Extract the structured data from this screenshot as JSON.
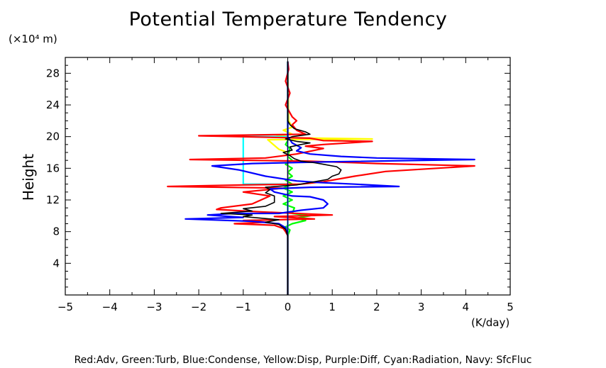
{
  "chart_data": {
    "type": "line",
    "title": "Potential Temperature Tendency",
    "xlabel": "(K/day)",
    "ylabel": "Height",
    "y_unit": "(×10⁴ m)",
    "xlim": [
      -5,
      5
    ],
    "ylim": [
      0,
      30
    ],
    "x_ticks": [
      -5,
      -4,
      -3,
      -2,
      -1,
      0,
      1,
      2,
      3,
      4,
      5
    ],
    "y_ticks": [
      4,
      8,
      12,
      16,
      20,
      24,
      28
    ],
    "grid": false,
    "caption": "Red:Adv, Green:Turb, Blue:Condense, Yellow:Disp, Purple:Diff, Cyan:Radiation, Navy: SfcFluc",
    "colors": {
      "Adv": "#ff0000",
      "Turb": "#00ff00",
      "Condense": "#0000ff",
      "Disp": "#ffff00",
      "Diff": "#b000b0",
      "Radiation": "#00ffff",
      "Navy": "#000080",
      "total": "#000000"
    },
    "series": [
      {
        "name": "Turb",
        "color_key": "Turb",
        "points": [
          [
            0,
            0
          ],
          [
            0,
            7.5
          ],
          [
            0.05,
            8.2
          ],
          [
            -0.05,
            8.6
          ],
          [
            0.1,
            9.0
          ],
          [
            0.4,
            9.4
          ],
          [
            0.2,
            9.7
          ],
          [
            0.5,
            10.0
          ],
          [
            0.1,
            10.3
          ],
          [
            0.15,
            11.0
          ],
          [
            -0.1,
            11.5
          ],
          [
            0.1,
            12.0
          ],
          [
            -0.1,
            12.5
          ],
          [
            0.1,
            13.0
          ],
          [
            -0.1,
            13.5
          ],
          [
            0.1,
            14.0
          ],
          [
            -0.05,
            14.5
          ],
          [
            0.1,
            15.0
          ],
          [
            0,
            15.5
          ],
          [
            0.1,
            16.0
          ],
          [
            -0.05,
            16.5
          ],
          [
            0.1,
            17.0
          ],
          [
            0,
            17.5
          ],
          [
            0.05,
            18.5
          ],
          [
            -0.05,
            19.0
          ],
          [
            0,
            19.5
          ],
          [
            0,
            29.5
          ]
        ]
      },
      {
        "name": "Disp",
        "color_key": "Disp",
        "points": [
          [
            0,
            0
          ],
          [
            0,
            18.0
          ],
          [
            -0.2,
            18.4
          ],
          [
            -0.45,
            19.6
          ],
          [
            1.9,
            19.7
          ],
          [
            0.1,
            19.85
          ],
          [
            -0.3,
            20.0
          ],
          [
            0.1,
            20.3
          ],
          [
            -0.1,
            20.8
          ],
          [
            0.1,
            21.2
          ],
          [
            0.02,
            22.0
          ],
          [
            0,
            29.5
          ]
        ]
      },
      {
        "name": "Radiation",
        "color_key": "Radiation",
        "points": [
          [
            0,
            0
          ],
          [
            0,
            14.0
          ],
          [
            -1.0,
            14.0
          ],
          [
            -1.0,
            20.0
          ],
          [
            0,
            20.0
          ],
          [
            0,
            29.5
          ]
        ]
      },
      {
        "name": "Adv",
        "color_key": "Adv",
        "points": [
          [
            0,
            0
          ],
          [
            0,
            7.5
          ],
          [
            -0.05,
            8.0
          ],
          [
            -0.1,
            8.4
          ],
          [
            -0.3,
            8.8
          ],
          [
            -1.2,
            9.0
          ],
          [
            -0.5,
            9.2
          ],
          [
            -1.0,
            9.4
          ],
          [
            0.6,
            9.6
          ],
          [
            -0.3,
            9.9
          ],
          [
            1.0,
            10.1
          ],
          [
            -0.6,
            10.5
          ],
          [
            -1.6,
            10.8
          ],
          [
            -1.5,
            11.0
          ],
          [
            -0.8,
            11.5
          ],
          [
            -0.4,
            12.5
          ],
          [
            -1.0,
            13.0
          ],
          [
            -0.1,
            13.5
          ],
          [
            -2.7,
            13.7
          ],
          [
            -1.0,
            13.9
          ],
          [
            0.3,
            14.0
          ],
          [
            0.8,
            14.3
          ],
          [
            1.5,
            15.0
          ],
          [
            2.2,
            15.6
          ],
          [
            4.2,
            16.3
          ],
          [
            2.0,
            16.6
          ],
          [
            0.5,
            16.9
          ],
          [
            -2.2,
            17.1
          ],
          [
            -0.5,
            17.3
          ],
          [
            0.2,
            17.8
          ],
          [
            0.8,
            18.5
          ],
          [
            0.4,
            18.8
          ],
          [
            0.8,
            19.0
          ],
          [
            1.9,
            19.4
          ],
          [
            0.8,
            19.5
          ],
          [
            0.5,
            19.8
          ],
          [
            -2.0,
            20.1
          ],
          [
            0.4,
            20.3
          ],
          [
            0.2,
            20.8
          ],
          [
            0.1,
            21.5
          ],
          [
            0.2,
            22.0
          ],
          [
            0.1,
            22.5
          ],
          [
            0,
            23.5
          ],
          [
            -0.05,
            24.0
          ],
          [
            0.05,
            25.5
          ],
          [
            -0.05,
            27.0
          ],
          [
            0.02,
            28.5
          ],
          [
            0,
            29.5
          ]
        ]
      },
      {
        "name": "Condense",
        "color_key": "Condense",
        "points": [
          [
            0,
            0
          ],
          [
            0,
            7.5
          ],
          [
            -0.05,
            8.5
          ],
          [
            -0.2,
            9.0
          ],
          [
            -0.8,
            9.3
          ],
          [
            -2.3,
            9.6
          ],
          [
            -1.0,
            9.8
          ],
          [
            -1.8,
            10.1
          ],
          [
            -1.2,
            10.3
          ],
          [
            -0.2,
            10.3
          ],
          [
            0.3,
            10.7
          ],
          [
            0.8,
            11.0
          ],
          [
            0.9,
            11.5
          ],
          [
            0.8,
            12.0
          ],
          [
            0.5,
            12.4
          ],
          [
            0.1,
            12.5
          ],
          [
            -0.3,
            13.0
          ],
          [
            -0.4,
            13.4
          ],
          [
            0.5,
            13.6
          ],
          [
            2.5,
            13.7
          ],
          [
            1.5,
            14.0
          ],
          [
            0.7,
            14.2
          ],
          [
            0.2,
            14.4
          ],
          [
            -0.5,
            15.0
          ],
          [
            -1.1,
            15.8
          ],
          [
            -1.7,
            16.3
          ],
          [
            -0.8,
            16.6
          ],
          [
            0.8,
            16.8
          ],
          [
            4.2,
            17.1
          ],
          [
            2.0,
            17.3
          ],
          [
            1.2,
            17.5
          ],
          [
            0.5,
            17.8
          ],
          [
            0.2,
            18.2
          ],
          [
            0.3,
            18.6
          ],
          [
            0.1,
            19.2
          ],
          [
            0,
            20.0
          ],
          [
            0,
            29.5
          ]
        ]
      },
      {
        "name": "Navy",
        "color_key": "Navy",
        "points": [
          [
            0,
            0
          ],
          [
            0,
            29.5
          ]
        ]
      },
      {
        "name": "Total",
        "color_key": "total",
        "points": [
          [
            0,
            0
          ],
          [
            0,
            7.5
          ],
          [
            -0.05,
            8.3
          ],
          [
            -0.2,
            8.9
          ],
          [
            -0.5,
            9.2
          ],
          [
            -0.2,
            9.5
          ],
          [
            -1.0,
            9.9
          ],
          [
            -0.8,
            10.1
          ],
          [
            -1.5,
            10.3
          ],
          [
            -0.8,
            10.6
          ],
          [
            -1.0,
            10.9
          ],
          [
            -0.5,
            11.2
          ],
          [
            -0.3,
            11.7
          ],
          [
            -0.3,
            12.5
          ],
          [
            -0.5,
            12.9
          ],
          [
            -0.4,
            13.3
          ],
          [
            -0.5,
            13.6
          ],
          [
            0.2,
            13.9
          ],
          [
            0.5,
            14.2
          ],
          [
            0.9,
            14.6
          ],
          [
            1.0,
            15.0
          ],
          [
            1.15,
            15.3
          ],
          [
            1.2,
            15.8
          ],
          [
            1.1,
            16.2
          ],
          [
            0.8,
            16.5
          ],
          [
            0.6,
            16.7
          ],
          [
            0.3,
            16.9
          ],
          [
            0.15,
            17.2
          ],
          [
            0.05,
            17.6
          ],
          [
            -0.1,
            18.0
          ],
          [
            0.1,
            18.3
          ],
          [
            0.05,
            18.7
          ],
          [
            0.3,
            19.0
          ],
          [
            0.5,
            19.2
          ],
          [
            0.2,
            19.4
          ],
          [
            -0.05,
            19.7
          ],
          [
            0.1,
            20.0
          ],
          [
            0.5,
            20.3
          ],
          [
            0.4,
            20.6
          ],
          [
            0.15,
            21.0
          ],
          [
            0.05,
            21.5
          ],
          [
            0,
            22.0
          ],
          [
            0,
            29.5
          ]
        ]
      }
    ]
  }
}
